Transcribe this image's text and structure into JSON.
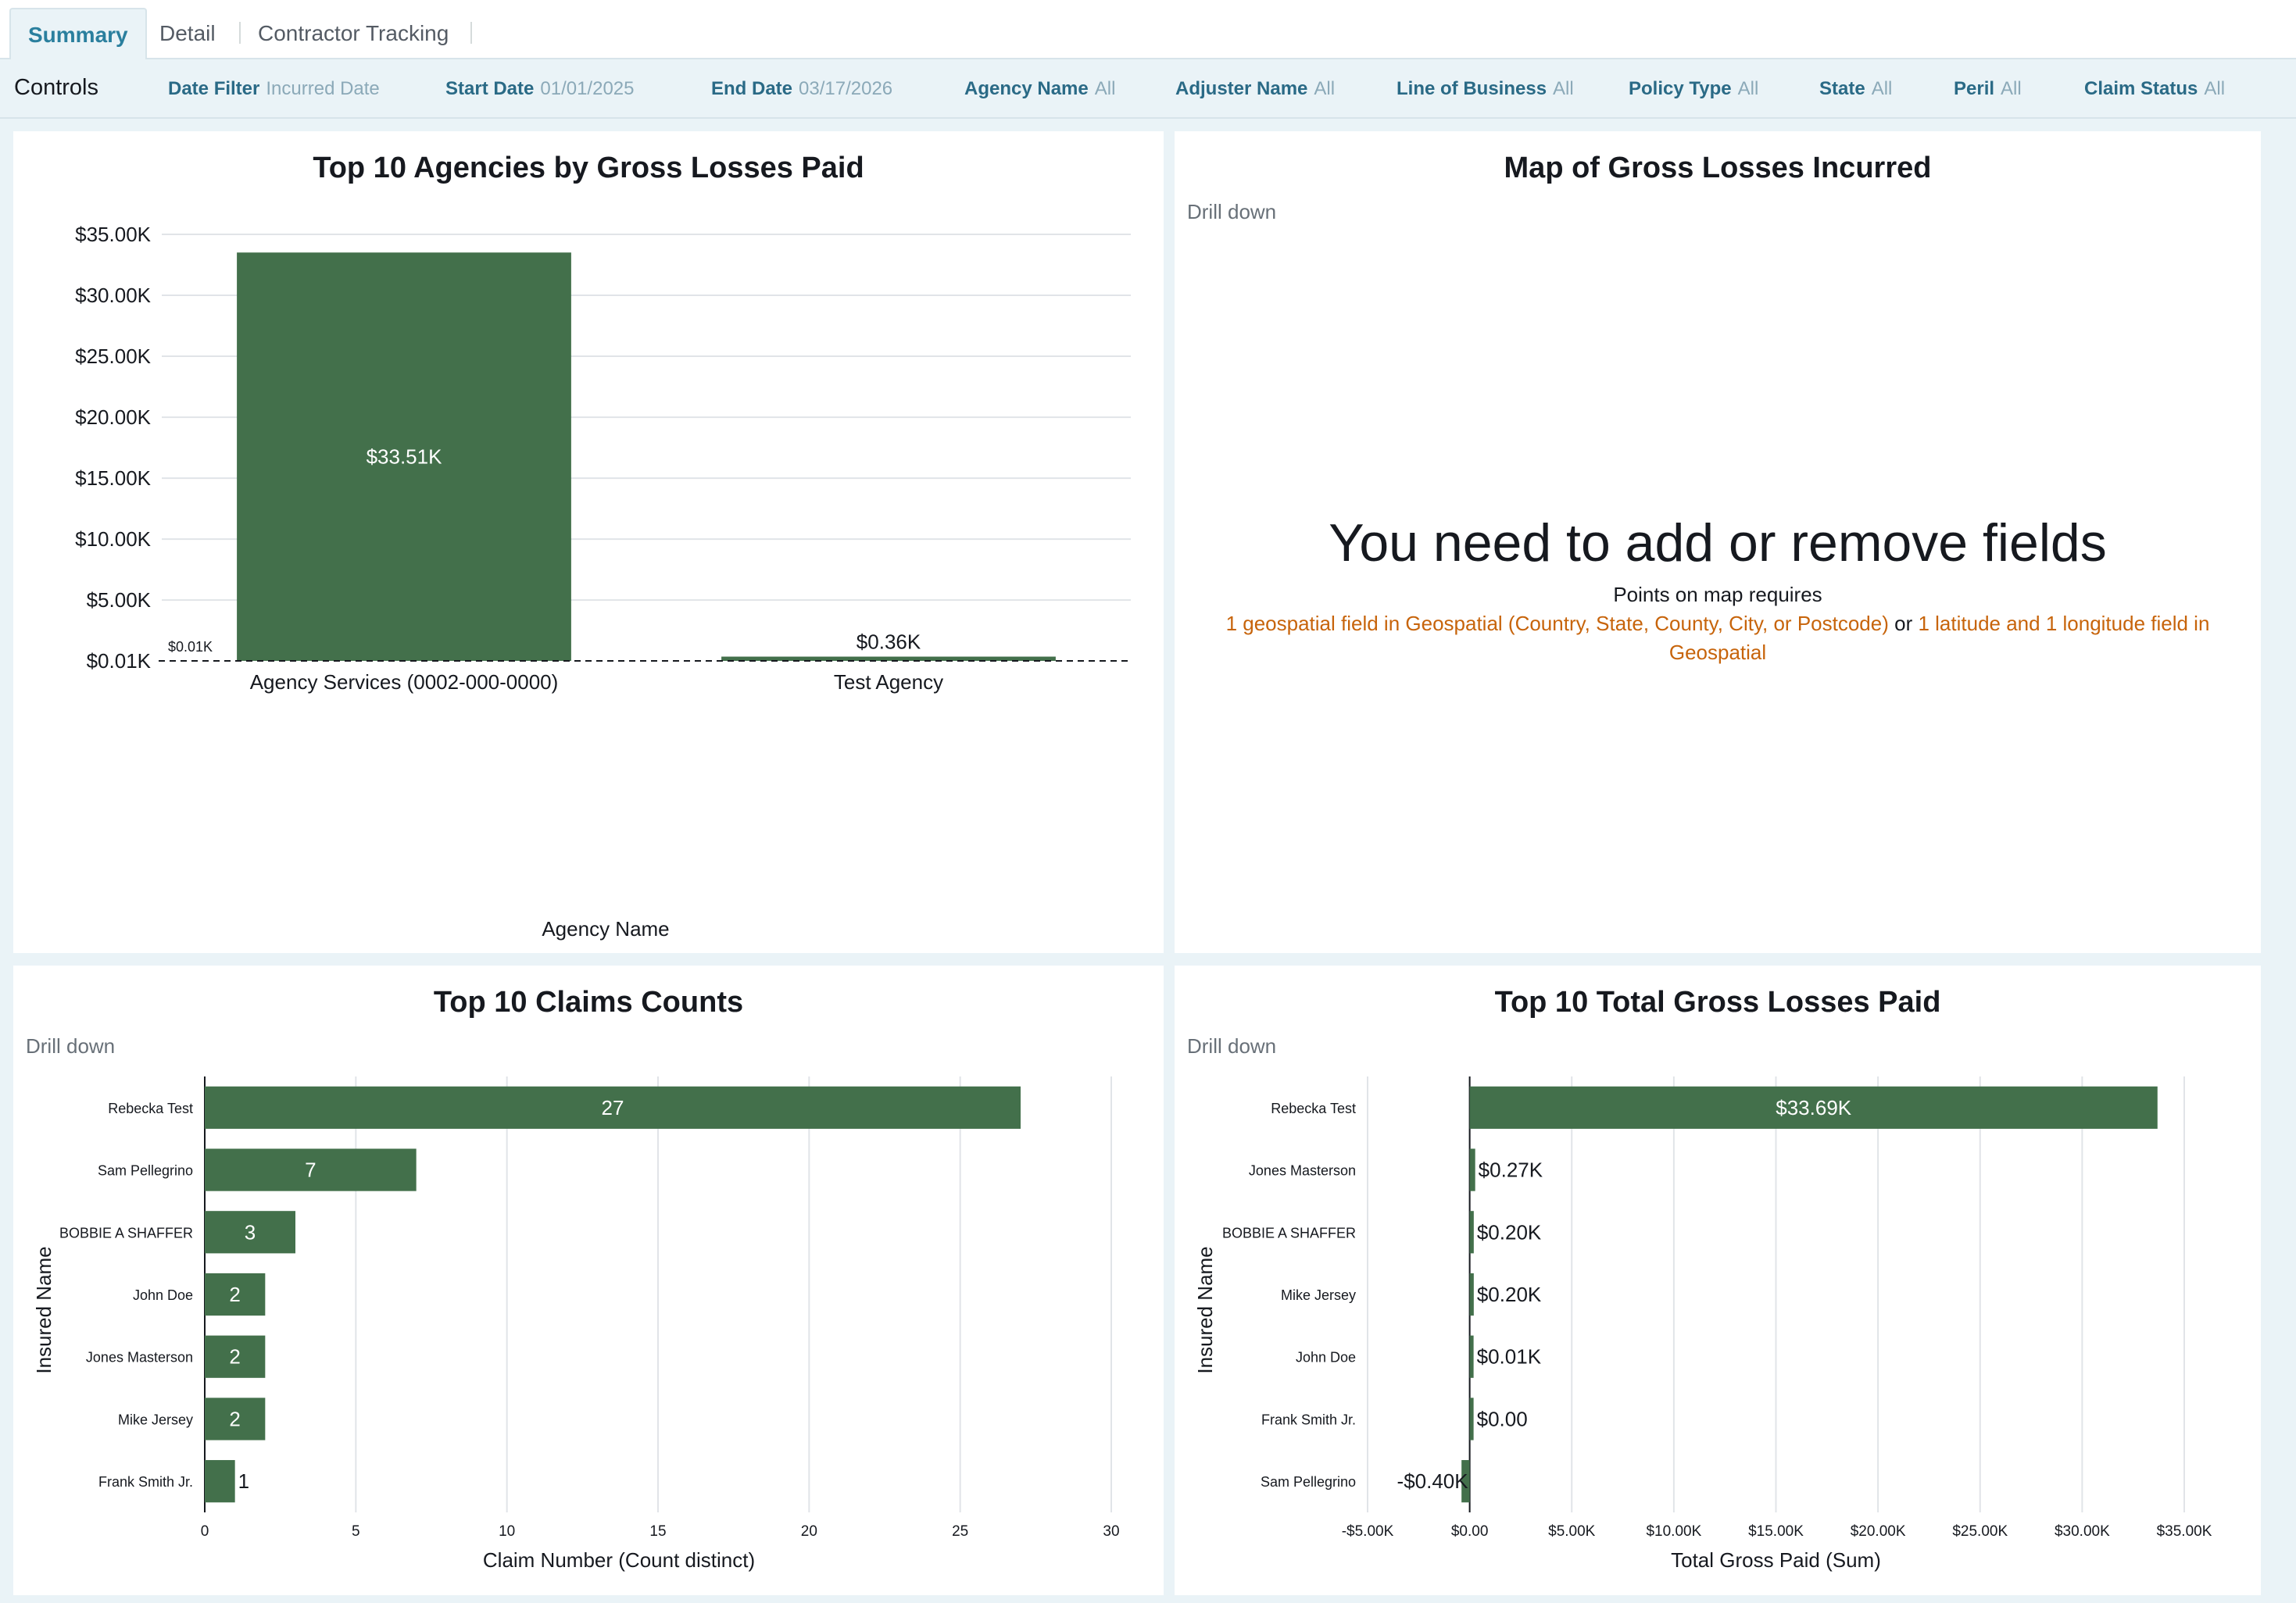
{
  "tabs": [
    {
      "label": "Summary",
      "active": true
    },
    {
      "label": "Detail",
      "active": false
    },
    {
      "label": "Contractor Tracking",
      "active": false
    }
  ],
  "controls": {
    "title": "Controls",
    "filters": [
      {
        "key": "Date Filter",
        "value": "Incurred Date"
      },
      {
        "key": "Start Date",
        "value": "01/01/2025"
      },
      {
        "key": "End Date",
        "value": "03/17/2026"
      },
      {
        "key": "Agency Name",
        "value": "All"
      },
      {
        "key": "Adjuster Name",
        "value": "All"
      },
      {
        "key": "Line of Business",
        "value": "All"
      },
      {
        "key": "Policy Type",
        "value": "All"
      },
      {
        "key": "State",
        "value": "All"
      },
      {
        "key": "Peril",
        "value": "All"
      },
      {
        "key": "Claim Status",
        "value": "All"
      }
    ]
  },
  "agencies_panel": {
    "title": "Top 10 Agencies by Gross Losses Paid"
  },
  "map_panel": {
    "title": "Map of Gross Losses Incurred",
    "drill": "Drill down",
    "message": "You need to add or remove fields",
    "sub": "Points on map requires",
    "req_part1": "1 geospatial field in Geospatial (Country, State, County, City, or Postcode)",
    "req_or": " or ",
    "req_part2": "1 latitude and 1 longitude field in Geospatial"
  },
  "claims_panel": {
    "title": "Top 10 Claims Counts",
    "drill": "Drill down"
  },
  "losses_panel": {
    "title": "Top 10 Total Gross Losses Paid",
    "drill": "Drill down"
  },
  "colors": {
    "bar": "#43704b",
    "accent": "#2a7f9e",
    "orange": "#c7640b"
  },
  "chart_data": [
    {
      "type": "bar",
      "title": "Top 10 Agencies by Gross Losses Paid",
      "xlabel": "Agency Name",
      "ylabel": "",
      "categories": [
        "Agency Services (0002-000-0000)",
        "Test Agency"
      ],
      "values": [
        33.51,
        0.36
      ],
      "value_labels": [
        "$33.51K",
        "$0.36K"
      ],
      "unit": "$K",
      "yticks": [
        0.01,
        5,
        10,
        15,
        20,
        25,
        30,
        35
      ],
      "ytick_labels": [
        "$0.01K",
        "$5.00K",
        "$10.00K",
        "$15.00K",
        "$20.00K",
        "$25.00K",
        "$30.00K",
        "$35.00K"
      ],
      "ylim": [
        0.01,
        35
      ],
      "reference_line": {
        "value": 0.01,
        "label": "$0.01K"
      },
      "grid": true
    },
    {
      "type": "bar",
      "orientation": "horizontal",
      "title": "Top 10 Claims Counts",
      "xlabel": "Claim Number (Count distinct)",
      "ylabel": "Insured Name",
      "categories": [
        "Rebecka Test",
        "Sam Pellegrino",
        "BOBBIE A SHAFFER",
        "John Doe",
        "Jones Masterson",
        "Mike Jersey",
        "Frank Smith Jr."
      ],
      "values": [
        27,
        7,
        3,
        2,
        2,
        2,
        1
      ],
      "value_labels": [
        "27",
        "7",
        "3",
        "2",
        "2",
        "2",
        "1"
      ],
      "xticks": [
        0,
        5,
        10,
        15,
        20,
        25,
        30
      ],
      "xtick_labels": [
        "0",
        "5",
        "10",
        "15",
        "20",
        "25",
        "30"
      ],
      "xlim": [
        0,
        30
      ],
      "grid": true
    },
    {
      "type": "bar",
      "orientation": "horizontal",
      "title": "Top 10 Total Gross Losses Paid",
      "xlabel": "Total Gross Paid (Sum)",
      "ylabel": "Insured Name",
      "categories": [
        "Rebecka Test",
        "Jones Masterson",
        "BOBBIE A SHAFFER",
        "Mike Jersey",
        "John Doe",
        "Frank Smith Jr.",
        "Sam Pellegrino"
      ],
      "values": [
        33.69,
        0.27,
        0.2,
        0.2,
        0.01,
        0,
        -0.4
      ],
      "value_labels": [
        "$33.69K",
        "$0.27K",
        "$0.20K",
        "$0.20K",
        "$0.01K",
        "$0.00",
        "-$0.40K"
      ],
      "unit": "$K",
      "xticks": [
        -5,
        0,
        5,
        10,
        15,
        20,
        25,
        30,
        35
      ],
      "xtick_labels": [
        "-$5.00K",
        "$0.00",
        "$5.00K",
        "$10.00K",
        "$15.00K",
        "$20.00K",
        "$25.00K",
        "$30.00K",
        "$35.00K"
      ],
      "xlim": [
        -5,
        35
      ],
      "grid": true
    }
  ]
}
